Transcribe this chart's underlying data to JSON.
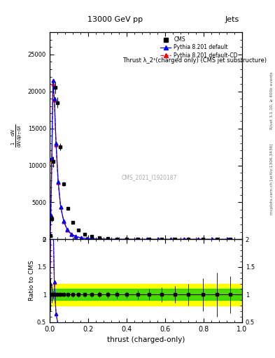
{
  "title_center": "13000 GeV pp",
  "title_right": "Jets",
  "annotation": "Thrust λ_2¹(charged only) (CMS jet substructure)",
  "watermark": "CMS_2021_I1920187",
  "xlabel": "thrust (charged-only)",
  "ylabel_ratio": "Ratio to CMS",
  "right_label_top": "Rivet 3.1.10, ≥ 400k events",
  "right_label_bottom": "mcplots.cern.ch [arXiv:1306.3436]",
  "xlim": [
    0,
    1
  ],
  "ylim_main": [
    0,
    28000
  ],
  "ylim_ratio": [
    0.5,
    2.0
  ],
  "yticks_main": [
    0,
    5000,
    10000,
    15000,
    20000,
    25000
  ],
  "yticks_ratio": [
    0.5,
    1.0,
    1.5,
    2.0
  ],
  "yticklabels_main": [
    "0",
    "5000",
    "10000",
    "15000",
    "20000",
    "25000"
  ],
  "yticklabels_ratio": [
    "0.5",
    "1",
    "1.5",
    "2"
  ],
  "cms_x": [
    0.005,
    0.012,
    0.02,
    0.03,
    0.042,
    0.057,
    0.075,
    0.097,
    0.122,
    0.15,
    0.182,
    0.218,
    0.258,
    0.302,
    0.35,
    0.402,
    0.458,
    0.518,
    0.582,
    0.65,
    0.722,
    0.798,
    0.87,
    0.94
  ],
  "cms_y": [
    500,
    2800,
    10500,
    20500,
    18500,
    12500,
    7500,
    4200,
    2300,
    1250,
    680,
    370,
    200,
    110,
    60,
    33,
    18,
    10,
    6,
    4,
    2,
    1,
    0.5,
    0.3
  ],
  "cms_yerr": [
    150,
    400,
    700,
    800,
    700,
    500,
    300,
    170,
    100,
    55,
    30,
    17,
    10,
    6,
    4,
    2,
    1.5,
    1,
    0.8,
    0.6,
    0.4,
    0.3,
    0.2,
    0.1
  ],
  "pythia_x": [
    0.003,
    0.007,
    0.012,
    0.018,
    0.025,
    0.034,
    0.045,
    0.058,
    0.074,
    0.092,
    0.113,
    0.137,
    0.164,
    0.194,
    0.228,
    0.265,
    0.306,
    0.35,
    0.398,
    0.45,
    0.506,
    0.566,
    0.63,
    0.698,
    0.77,
    0.846,
    0.926
  ],
  "pythia_y": [
    600,
    3200,
    11000,
    21500,
    19000,
    13000,
    7800,
    4400,
    2450,
    1320,
    710,
    385,
    210,
    115,
    63,
    35,
    19,
    11,
    6.5,
    3.8,
    2.2,
    1.3,
    0.8,
    0.5,
    0.3,
    0.2,
    0.1
  ],
  "pythia_cd_y": [
    580,
    3100,
    10800,
    21000,
    18800,
    12800,
    7700,
    4350,
    2420,
    1300,
    700,
    380,
    207,
    113,
    62,
    34,
    18.5,
    10.5,
    6.3,
    3.7,
    2.1,
    1.25,
    0.78,
    0.48,
    0.3,
    0.19,
    0.1
  ],
  "color_cms": "#000000",
  "color_pythia": "#0000FF",
  "color_pythia_cd": "#FF0000",
  "color_band_green": "#00CC00",
  "color_band_yellow": "#FFFF00",
  "legend_cms": "CMS",
  "legend_pythia": "Pythia 8.201 default",
  "legend_pythia_cd": "Pythia 8.201 default-CD"
}
